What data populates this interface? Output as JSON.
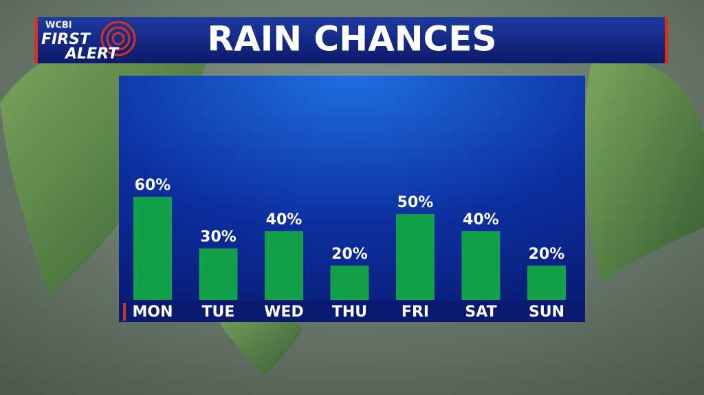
{
  "branding": {
    "station": "WCBI",
    "line1": "FIRST",
    "line2": "ALERT"
  },
  "chart_data": {
    "type": "bar",
    "title": "RAIN CHANCES",
    "categories": [
      "MON",
      "TUE",
      "WED",
      "THU",
      "FRI",
      "SAT",
      "SUN"
    ],
    "values": [
      60,
      30,
      40,
      20,
      50,
      40,
      20
    ],
    "value_labels": [
      "60%",
      "30%",
      "40%",
      "20%",
      "50%",
      "40%",
      "20%"
    ],
    "color": "#14a04b"
  }
}
